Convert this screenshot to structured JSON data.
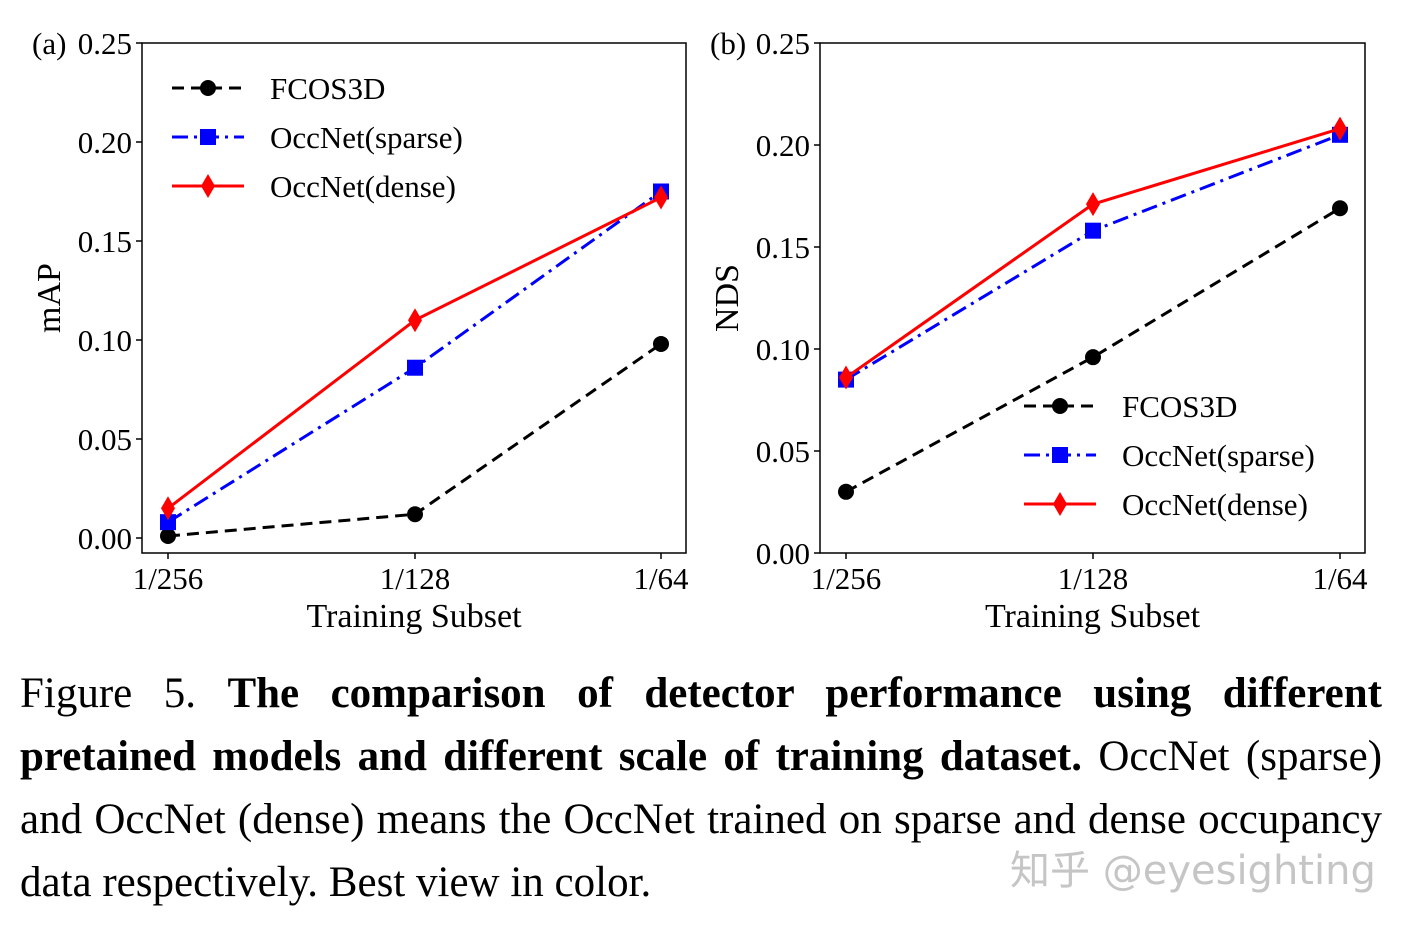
{
  "chart_data": [
    {
      "type": "line",
      "panel_label": "(a)",
      "title": "",
      "xlabel": "Training Subset",
      "ylabel": "mAP",
      "categories": [
        "1/256",
        "1/128",
        "1/64"
      ],
      "yticks": [
        "0.00",
        "0.05",
        "0.10",
        "0.15",
        "0.20",
        "0.25"
      ],
      "ylim": [
        0,
        0.25
      ],
      "legend_position": "upper-left",
      "series": [
        {
          "name": "FCOS3D",
          "values": [
            0.001,
            0.012,
            0.098
          ],
          "color": "#000000",
          "dash": "dashed",
          "marker": "circle"
        },
        {
          "name": "OccNet(sparse)",
          "values": [
            0.008,
            0.086,
            0.175
          ],
          "color": "#0000ff",
          "dash": "dashdot",
          "marker": "square"
        },
        {
          "name": "OccNet(dense)",
          "values": [
            0.015,
            0.11,
            0.172
          ],
          "color": "#ff0000",
          "dash": "solid",
          "marker": "diamond"
        }
      ]
    },
    {
      "type": "line",
      "panel_label": "(b)",
      "title": "",
      "xlabel": "Training Subset",
      "ylabel": "NDS",
      "categories": [
        "1/256",
        "1/128",
        "1/64"
      ],
      "yticks": [
        "0.00",
        "0.05",
        "0.10",
        "0.15",
        "0.20",
        "0.25"
      ],
      "ylim": [
        0,
        0.25
      ],
      "legend_position": "lower-right",
      "series": [
        {
          "name": "FCOS3D",
          "values": [
            0.03,
            0.096,
            0.169
          ],
          "color": "#000000",
          "dash": "dashed",
          "marker": "circle"
        },
        {
          "name": "OccNet(sparse)",
          "values": [
            0.085,
            0.158,
            0.205
          ],
          "color": "#0000ff",
          "dash": "dashdot",
          "marker": "square"
        },
        {
          "name": "OccNet(dense)",
          "values": [
            0.086,
            0.171,
            0.208
          ],
          "color": "#ff0000",
          "dash": "solid",
          "marker": "diamond"
        }
      ]
    }
  ],
  "caption": {
    "label": "Figure 5.",
    "bold": "The comparison of detector performance using different pretained models and different scale of training dataset.",
    "text": "OccNet (sparse) and OccNet (dense) means the OccNet trained on sparse and dense occupancy data respectively. Best view in color."
  },
  "watermark": "知乎 @eyesighting"
}
